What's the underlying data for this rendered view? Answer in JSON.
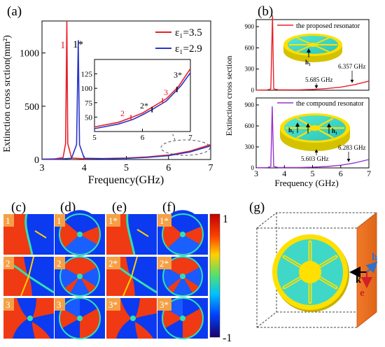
{
  "panel_labels": {
    "a": "(a)",
    "b": "(b)",
    "c": "(c)",
    "d": "(d)",
    "e": "(e)",
    "f": "(f)",
    "g": "(g)"
  },
  "chart_data": [
    {
      "type": "line",
      "panel": "(a)",
      "xlabel": "Frequency(GHz)",
      "ylabel": "Extinction cross srction(mm²)",
      "xlim": [
        3,
        7
      ],
      "ylim": [
        0,
        1300
      ],
      "xticks": [
        "3",
        "4",
        "5",
        "6",
        "7"
      ],
      "yticks": [
        "0",
        "500",
        "1000"
      ],
      "legend": "top-right",
      "legend_entries": [
        "ε₁=3.5",
        "ε₁=2.9"
      ],
      "peak_labels": [
        "1",
        "1*"
      ],
      "series": [
        {
          "name": "ε₁=3.5",
          "color": "#e8202a",
          "points": [
            [
              3.0,
              3
            ],
            [
              3.3,
              6
            ],
            [
              3.5,
              18
            ],
            [
              3.56,
              150
            ],
            [
              3.59,
              1300
            ],
            [
              3.61,
              150
            ],
            [
              3.7,
              14
            ],
            [
              4.0,
              7
            ],
            [
              4.5,
              9
            ],
            [
              5.0,
              14
            ],
            [
              5.5,
              24
            ],
            [
              6.0,
              42
            ],
            [
              6.5,
              78
            ],
            [
              7.0,
              140
            ]
          ]
        },
        {
          "name": "ε₁=2.9",
          "color": "#2a35c8",
          "points": [
            [
              3.0,
              2
            ],
            [
              3.4,
              4
            ],
            [
              3.7,
              12
            ],
            [
              3.82,
              140
            ],
            [
              3.86,
              1120
            ],
            [
              3.89,
              140
            ],
            [
              4.0,
              12
            ],
            [
              4.5,
              7
            ],
            [
              5.0,
              11
            ],
            [
              5.5,
              20
            ],
            [
              6.0,
              36
            ],
            [
              6.5,
              70
            ],
            [
              7.0,
              128
            ]
          ]
        }
      ],
      "inset": {
        "xlim": [
          5,
          7
        ],
        "ylim": [
          25,
          150
        ],
        "xticks": [
          "5",
          "6",
          "7"
        ],
        "yticks": [
          "50",
          "75",
          "100",
          "125"
        ],
        "point_labels": [
          "2",
          "2*",
          "3",
          "3*"
        ],
        "series": [
          {
            "name": "ε₁=3.5",
            "color": "#e8202a",
            "points": [
              [
                5.0,
                33
              ],
              [
                5.5,
                41
              ],
              [
                5.76,
                49
              ],
              [
                6.0,
                57
              ],
              [
                6.2,
                67
              ],
              [
                6.5,
                82
              ],
              [
                6.75,
                103
              ],
              [
                7.0,
                134
              ]
            ]
          },
          {
            "name": "ε₁=2.9",
            "color": "#2a35c8",
            "points": [
              [
                5.0,
                30
              ],
              [
                5.5,
                38
              ],
              [
                5.8,
                46
              ],
              [
                6.0,
                54
              ],
              [
                6.2,
                63
              ],
              [
                6.5,
                78
              ],
              [
                6.8,
                104
              ],
              [
                7.0,
                127
              ]
            ]
          }
        ]
      }
    },
    {
      "type": "line",
      "panel": "(b)",
      "xlabel": "Frequency (GHz)",
      "ylabel": "Extinction cross section",
      "xlim": [
        3,
        7
      ],
      "xticks": [
        "3",
        "4",
        "5",
        "6",
        "7"
      ],
      "top": {
        "legend_entry": "the proposed resonator",
        "color": "#e8202a",
        "ylim": [
          0,
          1000
        ],
        "yticks": [
          "0",
          "300",
          "600",
          "900"
        ],
        "annotations": [
          "5.685 GHz",
          "6.357 GHz"
        ],
        "points": [
          [
            3.0,
            2
          ],
          [
            3.4,
            4
          ],
          [
            3.52,
            20
          ],
          [
            3.58,
            1060
          ],
          [
            3.62,
            20
          ],
          [
            3.8,
            5
          ],
          [
            4.5,
            6
          ],
          [
            5.0,
            12
          ],
          [
            5.5,
            24
          ],
          [
            6.0,
            44
          ],
          [
            6.5,
            80
          ],
          [
            7.0,
            130
          ]
        ]
      },
      "bottom": {
        "legend_entry": "the compound resonator",
        "color": "#9b30d0",
        "ylim": [
          0,
          1000
        ],
        "yticks": [
          "0",
          "300",
          "600",
          "900"
        ],
        "annotations": [
          "5.603 GHz",
          "6.283 GHz"
        ],
        "points": [
          [
            3.0,
            2
          ],
          [
            3.4,
            4
          ],
          [
            3.52,
            20
          ],
          [
            3.57,
            880
          ],
          [
            3.62,
            20
          ],
          [
            3.8,
            5
          ],
          [
            4.5,
            6
          ],
          [
            5.0,
            10
          ],
          [
            5.5,
            20
          ],
          [
            6.0,
            38
          ],
          [
            6.5,
            72
          ],
          [
            7.0,
            120
          ]
        ]
      },
      "inset_labels": [
        "h₁",
        "h₁",
        "h₁"
      ]
    }
  ],
  "field_maps": {
    "rows": [
      [
        "1",
        "1",
        "1*",
        "1*"
      ],
      [
        "2",
        "2",
        "2*",
        "2*"
      ],
      [
        "3",
        "3",
        "3*",
        "3*"
      ]
    ],
    "colorbar": {
      "max": "1",
      "min": "-1"
    }
  },
  "panel_g": {
    "h": "h",
    "k": "k",
    "e": "e"
  },
  "colors": {
    "red": "#e8202a",
    "blue": "#2a35c8",
    "purple": "#9b30d0",
    "cyan": "#3fd8c8",
    "disk_yellow": "#ffe000",
    "orange": "#f07a28"
  }
}
